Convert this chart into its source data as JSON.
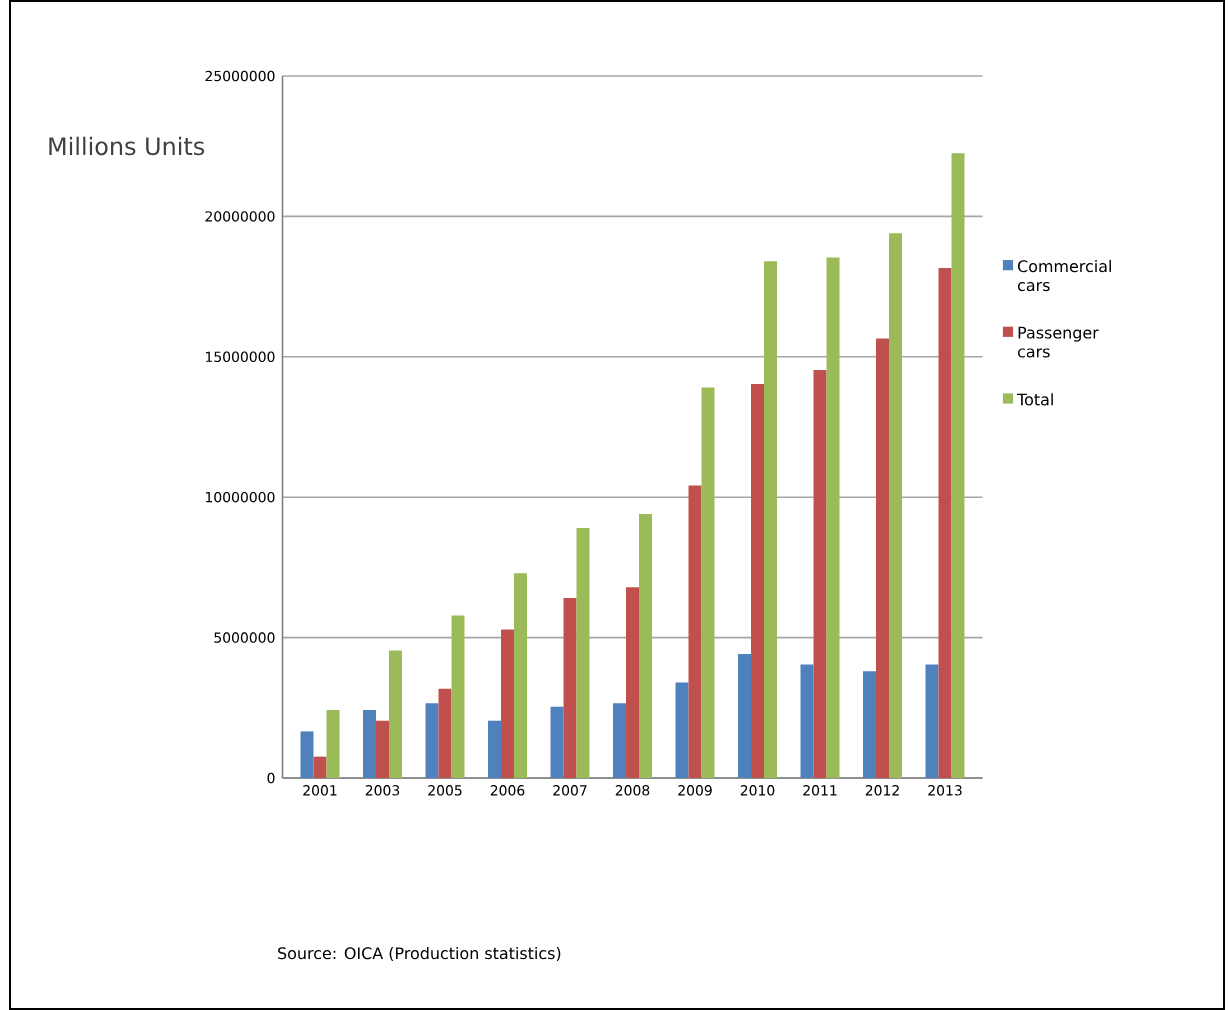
{
  "chart_data": {
    "type": "bar",
    "ylabel": "Millions Units",
    "categories": [
      "2001",
      "2003",
      "2005",
      "2006",
      "2007",
      "2008",
      "2009",
      "2010",
      "2011",
      "2012",
      "2013"
    ],
    "series": [
      {
        "name": "Commercial cars",
        "color": "#4f81bd",
        "values": [
          1660000,
          2420000,
          2660000,
          2040000,
          2540000,
          2660000,
          3400000,
          4420000,
          4040000,
          3800000,
          4040000
        ]
      },
      {
        "name": "Passenger cars",
        "color": "#c0504d",
        "values": [
          760000,
          2040000,
          3180000,
          5290000,
          6410000,
          6790000,
          10420000,
          14030000,
          14530000,
          15650000,
          18160000
        ]
      },
      {
        "name": "Total",
        "color": "#9bbb59",
        "values": [
          2420000,
          4540000,
          5790000,
          7290000,
          8900000,
          9400000,
          13910000,
          18400000,
          18540000,
          19400000,
          22250000
        ]
      }
    ],
    "ylim": [
      0,
      25000000
    ],
    "yticks": [
      0,
      5000000,
      10000000,
      15000000,
      20000000,
      25000000
    ],
    "grid": "y",
    "legend": "right",
    "annotations": [
      "Source: OICA (Production  statistics)"
    ]
  }
}
